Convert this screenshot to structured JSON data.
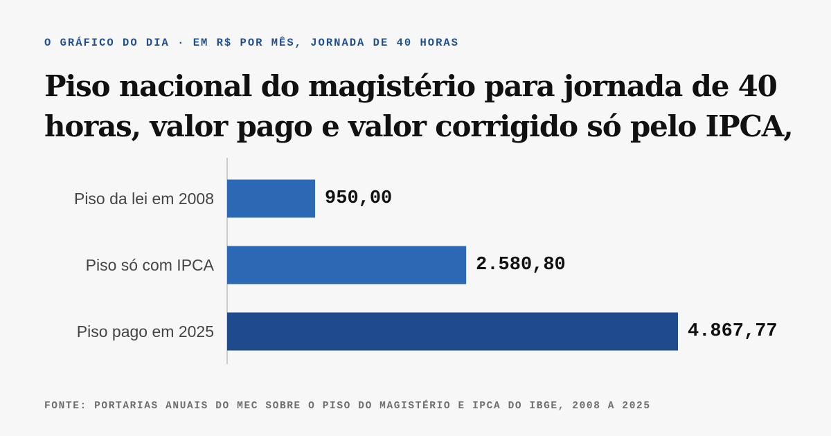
{
  "kicker": "O GRÁFICO DO DIA · EM R$ POR MÊS, JORNADA DE 40 HORAS",
  "source": "FONTE: PORTARIAS ANUAIS DO MEC SOBRE O PISO DO MAGISTÉRIO E IPCA DO IBGE, 2008 A 2025",
  "colors": {
    "bar_light": "#2d68b5",
    "bar_dark": "#1f4b8c",
    "axis": "#bdbdbd"
  },
  "chart_data": {
    "type": "bar",
    "orientation": "horizontal",
    "title": "Piso nacional do magistério para jornada de 40 horas, valor pago e valor corrigido só pelo IPCA,",
    "categories": [
      "Piso da lei em 2008",
      "Piso só com IPCA",
      "Piso pago em 2025"
    ],
    "values": [
      950.0,
      2580.8,
      4867.77
    ],
    "value_labels": [
      "950,00",
      "2.580,80",
      "4.867,77"
    ],
    "highlight_index": 2,
    "xlim": [
      0,
      4867.77
    ],
    "xlabel": "",
    "ylabel": "",
    "grid": false,
    "legend": "none"
  }
}
